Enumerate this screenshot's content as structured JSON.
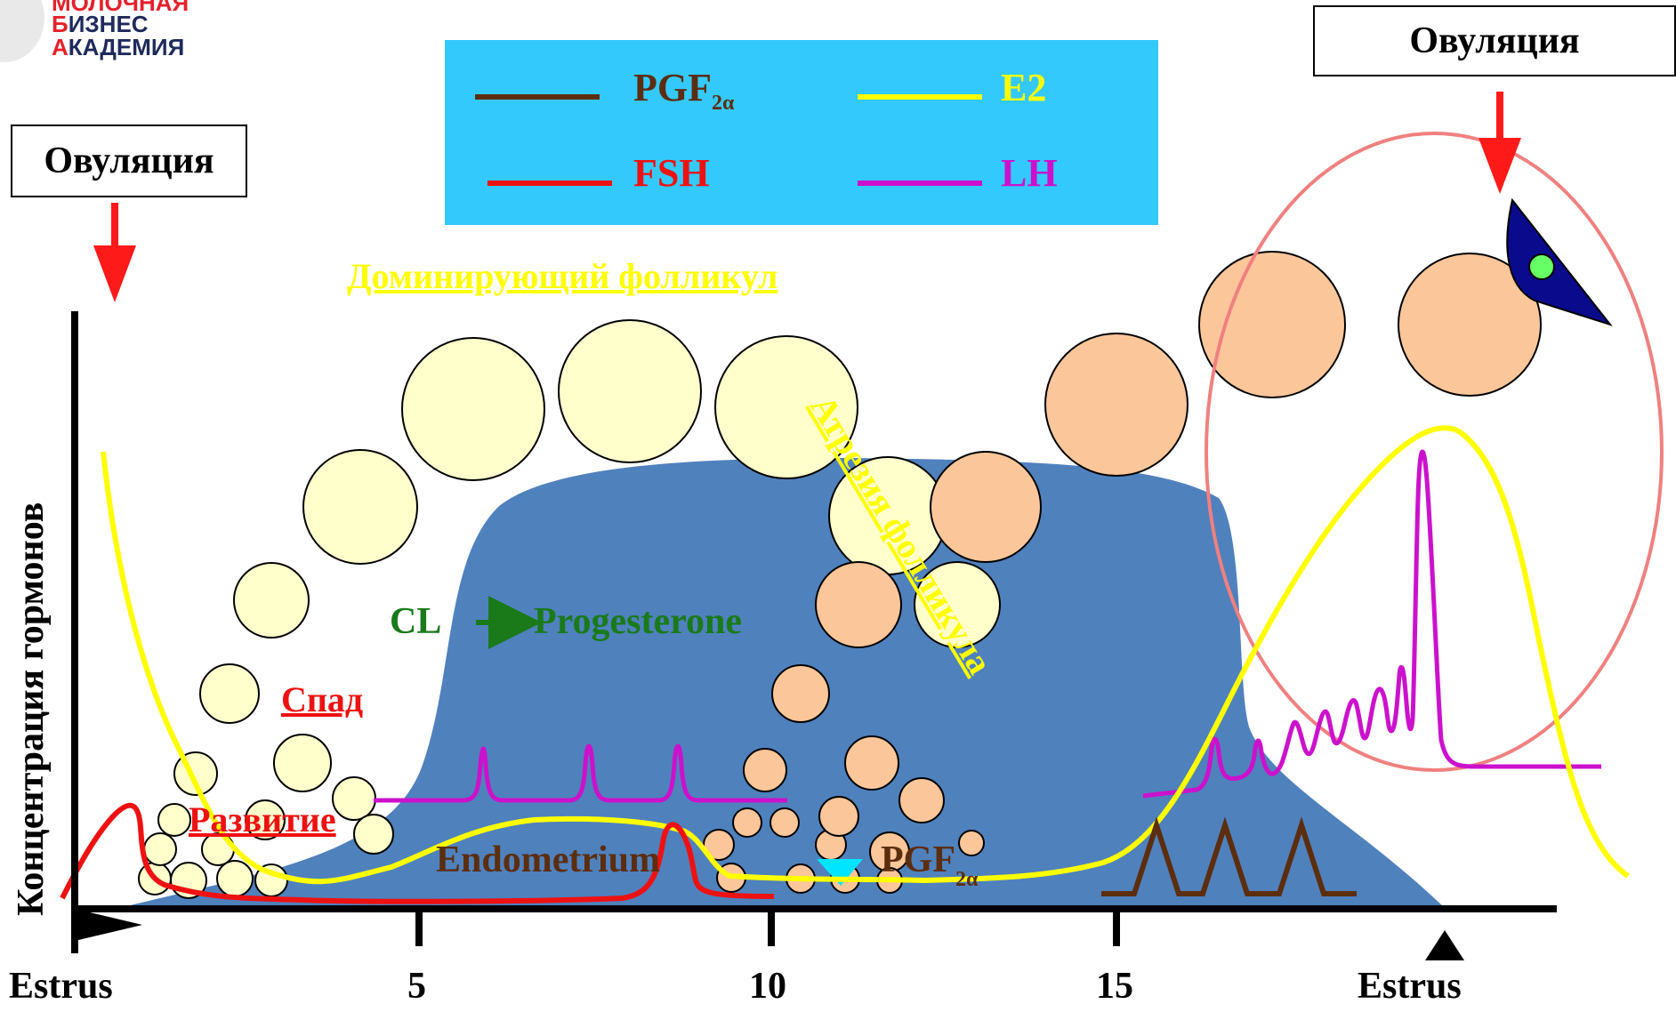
{
  "logo": {
    "line1": "МОЛОЧНАЯ",
    "line2_first": "Б",
    "line2_rest": "ИЗНЕС",
    "line3_first": "А",
    "line3_rest": "КАДЕМИЯ"
  },
  "ovulation_left": "Овуляция",
  "ovulation_right": "Овуляция",
  "legend": {
    "pgf": {
      "main": "PGF",
      "sub": "2α",
      "color": "#5c2e0e"
    },
    "e2": {
      "label": "E2",
      "color": "#ffff00"
    },
    "fsh": {
      "label": "FSH",
      "color": "#ee1111"
    },
    "lh": {
      "label": "LH",
      "color": "#cc11cc"
    },
    "background": "#34c9fc"
  },
  "labels": {
    "dominant_follicle": "Доминирующий фолликул",
    "atresia": "Атрезия фолликула",
    "decline": "Спад",
    "development": "Развитие",
    "cl": "CL",
    "progesterone": "Progesterone",
    "endometrium": "Endometrium",
    "pgf_main": "PGF",
    "pgf_sub": "2α"
  },
  "y_axis_label": "Концентрация гормонов",
  "x_ticks": [
    "Estrus",
    "5",
    "10",
    "15",
    "Estrus"
  ],
  "colors": {
    "progesterone_area": "#4f81bd",
    "follicle_light": "#ffffcc",
    "follicle_orange": "#fbc69a",
    "ovulation_arrow": "#ff1a1a",
    "ellipse": "#f08080",
    "green": "#1a7a1a"
  }
}
